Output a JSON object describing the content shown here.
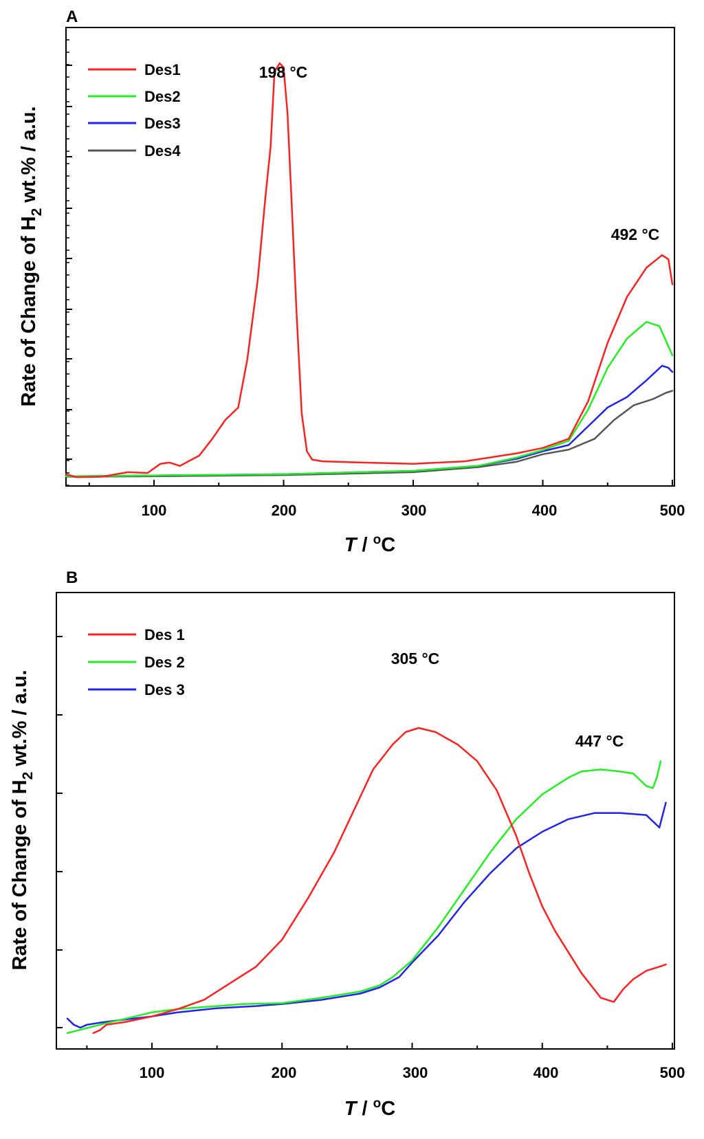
{
  "chart_data": [
    {
      "panel": "A",
      "type": "line",
      "title": "",
      "xlabel": "T / °C",
      "ylabel": "Rate of Change of H2 wt.% / a.u.",
      "xlim": [
        32,
        500
      ],
      "ylim": [
        0,
        100
      ],
      "xticks": [
        100,
        200,
        300,
        400,
        500
      ],
      "tick_labels": [
        "100",
        "200",
        "300",
        "400",
        "500"
      ],
      "legend_position": "top-left",
      "grid": false,
      "series": [
        {
          "name": "Des1",
          "color": "#ff2020",
          "x": [
            32,
            40,
            60,
            80,
            95,
            105,
            112,
            120,
            135,
            145,
            155,
            165,
            172,
            180,
            186,
            190,
            193,
            197,
            200,
            203,
            206,
            210,
            214,
            218,
            222,
            230,
            250,
            300,
            340,
            380,
            400,
            420,
            435,
            450,
            465,
            480,
            492,
            497,
            500
          ],
          "y": [
            1.5,
            0.8,
            0.9,
            2,
            1.8,
            4,
            4.3,
            3.5,
            6,
            10,
            14.5,
            17.5,
            29,
            48,
            68,
            80,
            98,
            100,
            99,
            88,
            68,
            40,
            16,
            7,
            5,
            4.6,
            4.4,
            4,
            4.6,
            6.5,
            7.8,
            10,
            19,
            33,
            44,
            51,
            54,
            53,
            47
          ]
        },
        {
          "name": "Des2",
          "color": "#22ee22",
          "x": [
            32,
            100,
            200,
            300,
            350,
            380,
            400,
            420,
            435,
            450,
            465,
            480,
            490,
            500
          ],
          "y": [
            1,
            1.2,
            1.5,
            2.3,
            3.5,
            5.5,
            7.3,
            9.5,
            17,
            27,
            34,
            38,
            37,
            30
          ]
        },
        {
          "name": "Des3",
          "color": "#2222ee",
          "x": [
            32,
            100,
            200,
            300,
            350,
            380,
            400,
            420,
            435,
            450,
            465,
            480,
            492,
            497,
            500
          ],
          "y": [
            1,
            1.2,
            1.5,
            2.3,
            3.5,
            5.2,
            7,
            8.5,
            13,
            17.5,
            20,
            24,
            27.5,
            27,
            26
          ]
        },
        {
          "name": "Des4",
          "color": "#555555",
          "x": [
            32,
            100,
            200,
            300,
            350,
            380,
            400,
            420,
            440,
            455,
            470,
            485,
            495,
            500
          ],
          "y": [
            0.9,
            1,
            1.3,
            2,
            3.2,
            4.5,
            6.3,
            7.4,
            10,
            14.5,
            18,
            19.5,
            21,
            21.5
          ]
        }
      ],
      "annotations": [
        {
          "text": "198 °C",
          "x": 198,
          "y": 100
        },
        {
          "text": "492 °C",
          "x": 492,
          "y": 54
        }
      ]
    },
    {
      "panel": "B",
      "type": "line",
      "title": "",
      "xlabel": "T / °C",
      "ylabel": "Rate of Change of H2 wt.% / a.u.",
      "xlim": [
        32,
        500
      ],
      "ylim": [
        0,
        100
      ],
      "xticks": [
        100,
        200,
        300,
        400,
        500
      ],
      "tick_labels": [
        "100",
        "200",
        "300",
        "400",
        "500"
      ],
      "legend_position": "top-left",
      "grid": false,
      "series": [
        {
          "name": "Des 1",
          "color": "#ff2020",
          "x": [
            55,
            60,
            65,
            80,
            100,
            120,
            140,
            160,
            180,
            200,
            220,
            240,
            255,
            270,
            285,
            295,
            305,
            318,
            335,
            350,
            365,
            380,
            390,
            400,
            410,
            420,
            430,
            445,
            455,
            462,
            470,
            480,
            490,
            495
          ],
          "y": [
            2.5,
            3.2,
            4.5,
            5.2,
            6.5,
            8.3,
            10.5,
            14.5,
            18.5,
            25,
            35,
            46,
            56,
            66,
            72,
            75,
            76,
            75,
            72,
            68,
            61,
            50,
            41,
            33,
            27,
            22,
            17,
            11,
            10,
            13,
            15.5,
            17.5,
            18.5,
            19
          ]
        },
        {
          "name": "Des 2",
          "color": "#22ee22",
          "x": [
            35,
            60,
            80,
            100,
            120,
            150,
            170,
            200,
            230,
            260,
            275,
            285,
            300,
            320,
            340,
            360,
            380,
            400,
            420,
            430,
            445,
            460,
            470,
            480,
            485,
            488,
            491
          ],
          "y": [
            2.5,
            4.5,
            6,
            7.5,
            8.3,
            9,
            9.5,
            9.7,
            11,
            12.5,
            14,
            16,
            20,
            28,
            37,
            46,
            54,
            60,
            64,
            65.5,
            66,
            65.5,
            65,
            62,
            61.5,
            64,
            68
          ]
        },
        {
          "name": "Des 3",
          "color": "#2222ee",
          "x": [
            35,
            40,
            45,
            50,
            60,
            80,
            100,
            120,
            150,
            180,
            200,
            230,
            260,
            275,
            290,
            300,
            320,
            340,
            360,
            380,
            400,
            420,
            440,
            460,
            480,
            490,
            495
          ],
          "y": [
            6,
            4.5,
            3.8,
            4.5,
            5,
            5.8,
            6.5,
            7.5,
            8.5,
            9,
            9.5,
            10.5,
            12,
            13.5,
            16,
            19.5,
            26,
            34,
            41,
            47,
            51,
            54,
            55.5,
            55.5,
            55,
            52,
            58
          ]
        }
      ],
      "annotations": [
        {
          "text": "305 °C",
          "x": 305,
          "y": 76
        },
        {
          "text": "447 °C",
          "x": 447,
          "y": 66
        }
      ]
    }
  ]
}
